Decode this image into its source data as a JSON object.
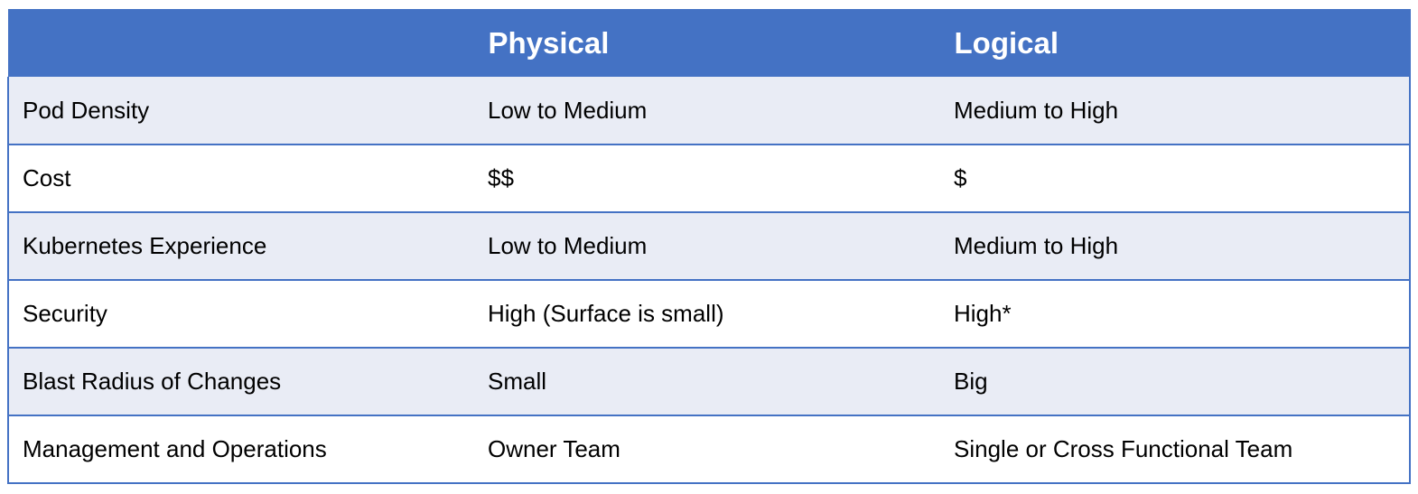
{
  "table": {
    "headers": [
      "",
      "Physical",
      "Logical"
    ],
    "rows": [
      [
        "Pod Density",
        "Low to Medium",
        "Medium to High"
      ],
      [
        "Cost",
        "$$",
        "$"
      ],
      [
        "Kubernetes Experience",
        "Low to Medium",
        "Medium to High"
      ],
      [
        "Security",
        "High (Surface is small)",
        "High*"
      ],
      [
        "Blast Radius of Changes",
        "Small",
        "Big"
      ],
      [
        "Management and Operations",
        "Owner Team",
        "Single or Cross Functional Team"
      ]
    ],
    "colors": {
      "header_bg": "#4472c4",
      "header_text": "#ffffff",
      "band_row_bg": "#e9ecf5",
      "plain_row_bg": "#ffffff",
      "border": "#4472c4"
    }
  }
}
